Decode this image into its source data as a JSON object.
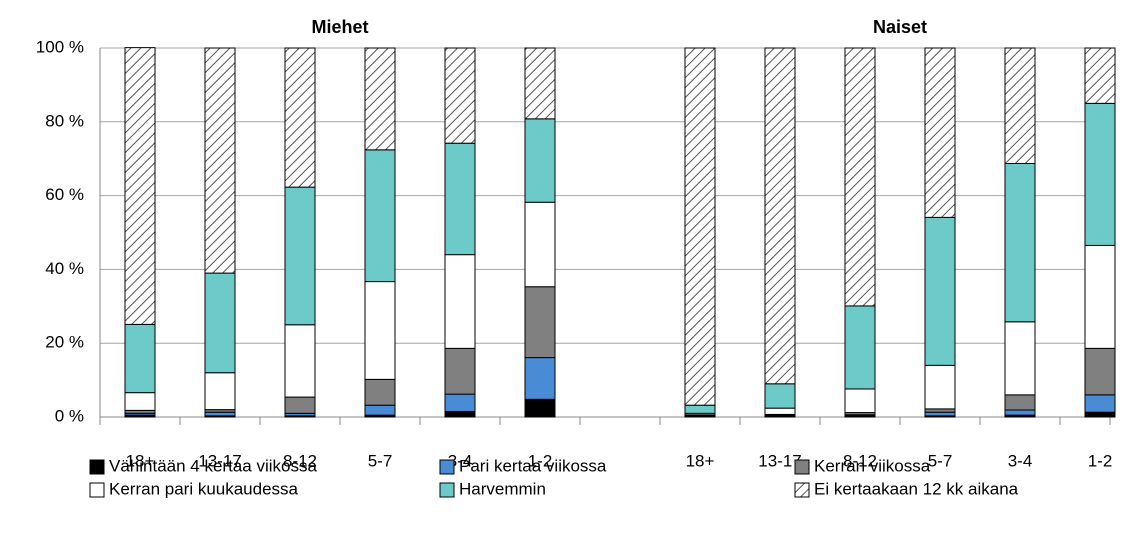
{
  "chart_data": {
    "type": "stacked_bar",
    "group_labels": [
      "Miehet",
      "Naiset"
    ],
    "categories": [
      "18+",
      "13-17",
      "8-12",
      "5-7",
      "3-4",
      "1-2",
      null,
      "18+",
      "13-17",
      "8-12",
      "5-7",
      "3-4",
      "1-2"
    ],
    "series": [
      {
        "name": "Vähintään 4 kertaa viikossa",
        "color": "#000000",
        "values": [
          0.5,
          0.3,
          0.3,
          0.5,
          1.5,
          4.8,
          null,
          0.2,
          0.2,
          0.3,
          0.3,
          0.5,
          1.3
        ]
      },
      {
        "name": "Pari kertaa viikossa",
        "color": "#4a8bd5",
        "values": [
          0.5,
          1,
          0.7,
          2.7,
          4.7,
          11.3,
          null,
          0.2,
          0.2,
          0.3,
          1,
          1.4,
          4.7
        ]
      },
      {
        "name": "Kerran viikossa",
        "color": "#808080",
        "values": [
          0.8,
          0.7,
          4.4,
          7,
          12.4,
          19.2,
          null,
          0.2,
          0.3,
          0.6,
          0.9,
          4.1,
          12.6
        ]
      },
      {
        "name": "Kerran pari kuukaudessa",
        "color": "#ffffff",
        "values": [
          4.8,
          10,
          19.6,
          26.5,
          25.4,
          22.9,
          null,
          0.4,
          1.7,
          6.4,
          11.8,
          19.8,
          27.9
        ]
      },
      {
        "name": "Harvemmin",
        "color": "#6ccbc8",
        "values": [
          18.5,
          27,
          37.3,
          35.7,
          30.2,
          22.6,
          null,
          2.2,
          6.6,
          22.5,
          40.1,
          42.9,
          38.5
        ]
      },
      {
        "name": "Ei kertaakaan 12 kk aikana",
        "color": "#ffffff",
        "pattern": "hatch",
        "values": [
          75,
          61,
          37.7,
          27.6,
          25.8,
          19.2,
          null,
          96.8,
          91,
          69.9,
          45.9,
          31.3,
          15
        ]
      }
    ],
    "ylim": [
      0,
      100
    ],
    "yticks": [
      {
        "value": 0,
        "label": "0 %"
      },
      {
        "value": 20,
        "label": "20 %"
      },
      {
        "value": 40,
        "label": "40 %"
      },
      {
        "value": 60,
        "label": "60 %"
      },
      {
        "value": 80,
        "label": "80 %"
      },
      {
        "value": 100,
        "label": "100 %"
      }
    ],
    "grid": true
  }
}
